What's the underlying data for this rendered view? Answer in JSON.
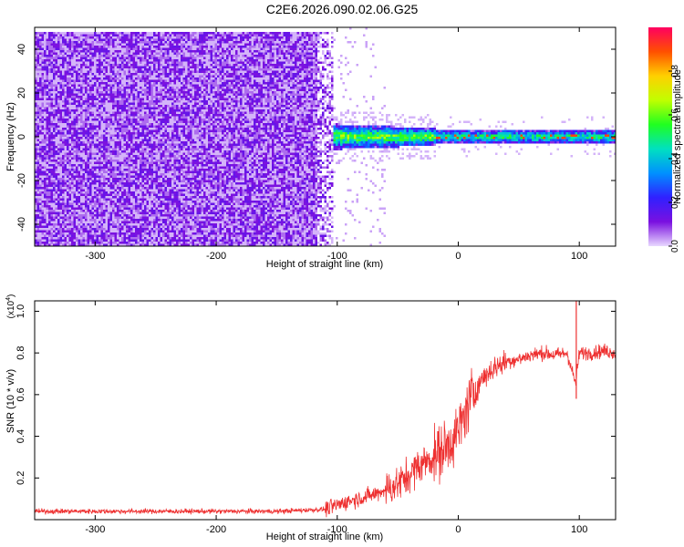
{
  "figure_title": "C2E6.2026.090.02.06.G25",
  "chart_data": [
    {
      "type": "heatmap",
      "title": "C2E6.2026.090.02.06.G25",
      "xlabel": "Height of straight line (km)",
      "ylabel": "Frequency (Hz)",
      "xlim": [
        -350,
        130
      ],
      "ylim": [
        -50,
        50
      ],
      "xticks": [
        -300,
        -200,
        -100,
        0,
        100
      ],
      "yticks": [
        -40,
        -20,
        0,
        20,
        40
      ],
      "colorbar": {
        "label": "Normalized spectral amplitude",
        "range": [
          0.0,
          1.0
        ],
        "ticks": [
          0.0,
          0.2,
          0.4,
          0.6,
          0.8
        ],
        "colormap": [
          "#e8d8ff",
          "#7a10e0",
          "#3020ff",
          "#0090ff",
          "#00e0c0",
          "#20ff20",
          "#c0ff00",
          "#ffd000",
          "#ff5000",
          "#ff0060"
        ]
      },
      "regions": [
        {
          "name": "noise",
          "x_range": [
            -350,
            -105
          ],
          "freq_range": [
            -50,
            48
          ],
          "amplitude": 0.05
        },
        {
          "name": "signal-onset",
          "x_range": [
            -110,
            -20
          ],
          "center_freq": 0.5,
          "halfwidth_hz": 4,
          "amplitude": 0.5
        },
        {
          "name": "signal-band",
          "x_range": [
            -20,
            130
          ],
          "center_freq": 0.5,
          "halfwidth_hz": 3,
          "amplitude": 0.4
        },
        {
          "name": "peak-line",
          "x_range": [
            -20,
            130
          ],
          "center_freq": 0.5,
          "amplitude": 0.9
        }
      ]
    },
    {
      "type": "line",
      "xlabel": "Height of straight line (km)",
      "ylabel": "SNR (10 * v/v)",
      "yscale_label": "(x10",
      "yscale_exp": "4",
      "scale_factor": 10000,
      "xlim": [
        -350,
        130
      ],
      "ylim": [
        0.0,
        1.05
      ],
      "xticks": [
        -300,
        -200,
        -100,
        0,
        100
      ],
      "yticks": [
        0.2,
        0.4,
        0.6,
        0.8,
        1.0
      ],
      "color": "#ee3030",
      "x": [
        -350,
        -300,
        -250,
        -200,
        -150,
        -110,
        -90,
        -70,
        -50,
        -40,
        -30,
        -20,
        -10,
        0,
        10,
        20,
        30,
        40,
        50,
        60,
        70,
        80,
        90,
        97,
        100,
        110,
        120,
        130
      ],
      "y": [
        0.04,
        0.04,
        0.04,
        0.04,
        0.04,
        0.05,
        0.09,
        0.12,
        0.17,
        0.22,
        0.27,
        0.3,
        0.35,
        0.42,
        0.58,
        0.68,
        0.73,
        0.76,
        0.77,
        0.79,
        0.8,
        0.79,
        0.8,
        0.65,
        0.8,
        0.8,
        0.81,
        0.8
      ]
    }
  ]
}
